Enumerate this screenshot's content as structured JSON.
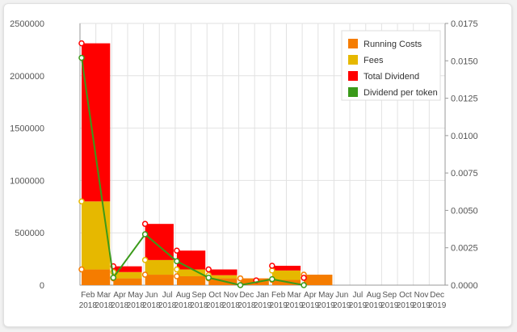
{
  "chart_data": {
    "type": "bar",
    "categories": [
      [
        "Feb",
        "2018"
      ],
      [
        "Mar",
        "2018"
      ],
      [
        "Apr",
        "2018"
      ],
      [
        "May",
        "2018"
      ],
      [
        "Jun",
        "2018"
      ],
      [
        "Jul",
        "2018"
      ],
      [
        "Aug",
        "2018"
      ],
      [
        "Sep",
        "2018"
      ],
      [
        "Oct",
        "2018"
      ],
      [
        "Nov",
        "2018"
      ],
      [
        "Dec",
        "2018"
      ],
      [
        "Jan",
        "2019"
      ],
      [
        "Feb",
        "2019"
      ],
      [
        "Mar",
        "2019"
      ],
      [
        "Apr",
        "2019"
      ],
      [
        "May",
        "2019"
      ],
      [
        "Jun",
        "2019"
      ],
      [
        "Jul",
        "2019"
      ],
      [
        "Aug",
        "2019"
      ],
      [
        "Sep",
        "2019"
      ],
      [
        "Oct",
        "2019"
      ],
      [
        "Nov",
        "2019"
      ],
      [
        "Dec",
        "2019"
      ]
    ],
    "stacked": true,
    "bars": [
      {
        "span": [
          0,
          1
        ],
        "running_costs": 150000,
        "fees": 650000,
        "total_dividend": 1510000
      },
      {
        "span": [
          2,
          3
        ],
        "running_costs": 65000,
        "fees": 60000,
        "total_dividend": 55000
      },
      {
        "span": [
          4,
          5
        ],
        "running_costs": 100000,
        "fees": 140000,
        "total_dividend": 345000
      },
      {
        "span": [
          6,
          7
        ],
        "running_costs": 85000,
        "fees": 65000,
        "total_dividend": 180000
      },
      {
        "span": [
          8,
          9
        ],
        "running_costs": 65000,
        "fees": 30000,
        "total_dividend": 55000
      },
      {
        "span": [
          10,
          11
        ],
        "running_costs": 65000,
        "fees": 0,
        "total_dividend": 0
      },
      {
        "span": [
          12,
          13
        ],
        "running_costs": 50000,
        "fees": 90000,
        "total_dividend": 45000
      },
      {
        "span": [
          14,
          15
        ],
        "running_costs": 100000,
        "fees": 0,
        "total_dividend": 0
      }
    ],
    "series": [
      {
        "name": "Running Costs",
        "color": "#f57c00",
        "axis": "left"
      },
      {
        "name": "Fees",
        "color": "#e6b800",
        "axis": "left"
      },
      {
        "name": "Total Dividend",
        "color": "#ff0000",
        "axis": "left"
      },
      {
        "name": "Dividend per token",
        "color": "#3a9a1a",
        "axis": "right",
        "kind": "line",
        "x": [
          0,
          2,
          4,
          6,
          8,
          10,
          12,
          14
        ],
        "values": [
          0.0152,
          0.0005,
          0.0034,
          0.0016,
          0.0005,
          0.0,
          0.0004,
          0.0
        ]
      }
    ],
    "extra_markers": [
      {
        "x": 11,
        "value": 45000,
        "color": "#ff0000"
      },
      {
        "x": 14,
        "value": 70000,
        "color": "#ff0000"
      }
    ],
    "y_left": {
      "range": [
        0,
        2500000
      ],
      "ticks": [
        "0",
        "500000",
        "1000000",
        "1500000",
        "2000000",
        "2500000"
      ]
    },
    "y_right": {
      "range": [
        0,
        0.0175
      ],
      "ticks": [
        "0.0000",
        "0.0025",
        "0.0050",
        "0.0075",
        "0.0100",
        "0.0125",
        "0.0150",
        "0.0175"
      ]
    },
    "grid": true,
    "legend_position": "top-right",
    "title": "",
    "xlabel": "",
    "ylabel": ""
  }
}
